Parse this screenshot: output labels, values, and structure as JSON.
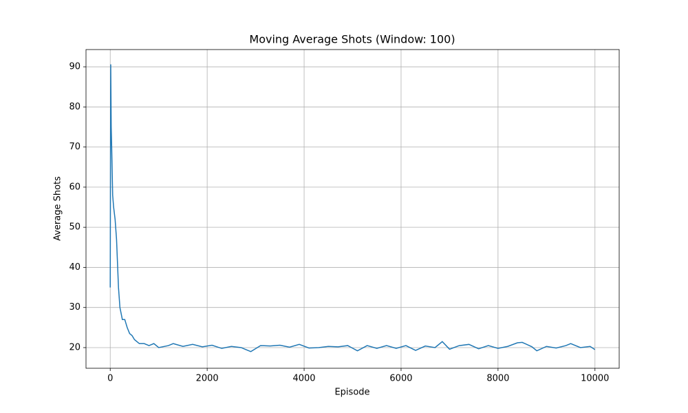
{
  "chart_data": {
    "type": "line",
    "title": "Moving Average Shots (Window: 100)",
    "xlabel": "Episode",
    "ylabel": "Average Shots",
    "x": [
      0,
      10,
      20,
      30,
      50,
      70,
      100,
      130,
      170,
      200,
      250,
      300,
      350,
      400,
      450,
      500,
      600,
      700,
      800,
      900,
      1000,
      1200,
      1300,
      1500,
      1700,
      1900,
      2100,
      2300,
      2500,
      2700,
      2900,
      3100,
      3300,
      3500,
      3700,
      3900,
      4100,
      4300,
      4500,
      4700,
      4900,
      5100,
      5300,
      5500,
      5700,
      5900,
      6100,
      6300,
      6500,
      6700,
      6850,
      7000,
      7200,
      7400,
      7600,
      7800,
      8000,
      8200,
      8400,
      8500,
      8700,
      8800,
      9000,
      9200,
      9400,
      9500,
      9700,
      9900,
      9999
    ],
    "series": [
      {
        "color": "#1f77b4",
        "values": [
          35,
          90.6,
          75,
          70,
          58,
          55,
          52,
          47,
          35,
          30,
          27,
          27,
          25,
          23.5,
          23,
          22,
          21,
          21,
          20.5,
          21,
          20,
          20.5,
          21,
          20.3,
          20.8,
          20.2,
          20.6,
          19.8,
          20.3,
          20,
          19,
          20.5,
          20.4,
          20.6,
          20.1,
          20.8,
          19.9,
          20,
          20.3,
          20.2,
          20.5,
          19.2,
          20.5,
          19.8,
          20.5,
          19.8,
          20.5,
          19.3,
          20.4,
          20,
          21.5,
          19.6,
          20.5,
          20.8,
          19.7,
          20.5,
          19.8,
          20.3,
          21.2,
          21.3,
          20.2,
          19.2,
          20.3,
          19.9,
          20.5,
          21,
          20,
          20.3,
          19.5
        ]
      }
    ],
    "xlim": [
      -500,
      10500
    ],
    "xticks": [
      0,
      2000,
      4000,
      6000,
      8000,
      10000
    ],
    "ylim": [
      14.85,
      94.3
    ],
    "yticks": [
      20,
      30,
      40,
      50,
      60,
      70,
      80,
      90
    ],
    "grid": true
  }
}
